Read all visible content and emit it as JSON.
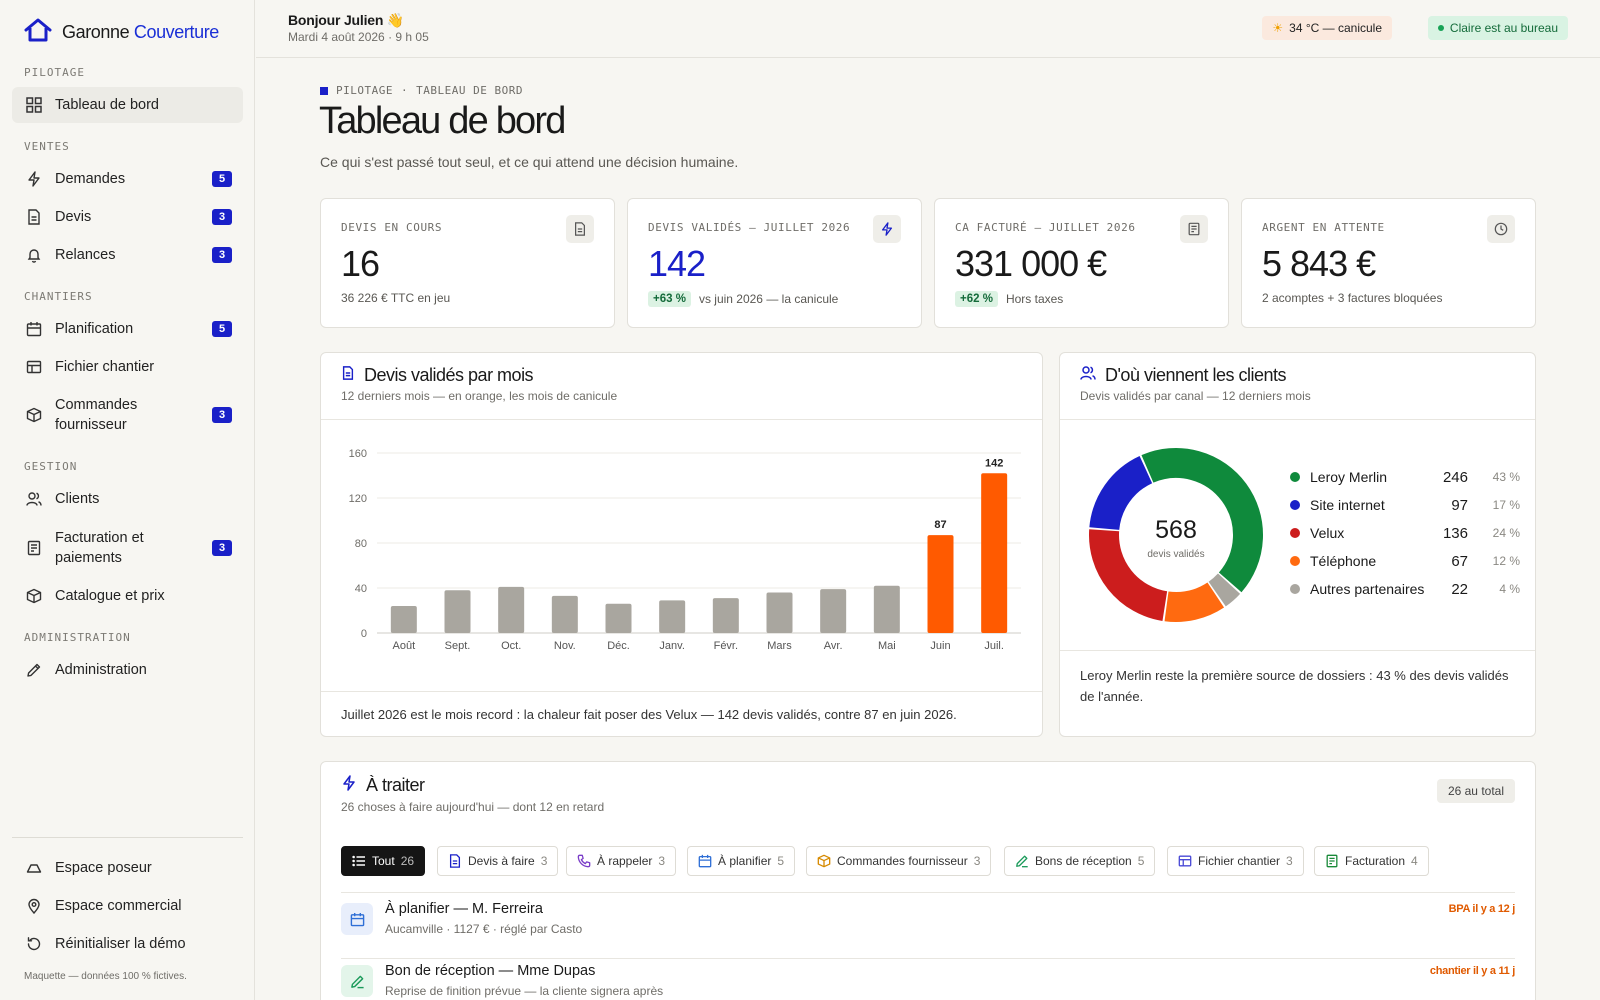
{
  "brand": {
    "name_part1": "Garonne",
    "name_part2": "Couverture"
  },
  "sidebar": {
    "sections": {
      "pilotage": "PILOTAGE",
      "ventes": "VENTES",
      "chantiers": "CHANTIERS",
      "gestion": "GESTION",
      "administration": "ADMINISTRATION"
    },
    "items": {
      "dashboard": {
        "label": "Tableau de bord"
      },
      "demandes": {
        "label": "Demandes",
        "badge": "5"
      },
      "devis": {
        "label": "Devis",
        "badge": "3"
      },
      "relances": {
        "label": "Relances",
        "badge": "3"
      },
      "planification": {
        "label": "Planification",
        "badge": "5"
      },
      "fichier": {
        "label": "Fichier chantier"
      },
      "commandes": {
        "label": "Commandes fournisseur",
        "badge": "3"
      },
      "clients": {
        "label": "Clients"
      },
      "facturation": {
        "label": "Facturation et paiements",
        "badge": "3"
      },
      "catalogue": {
        "label": "Catalogue et prix"
      },
      "admin": {
        "label": "Administration"
      },
      "poseur": {
        "label": "Espace poseur"
      },
      "commercial": {
        "label": "Espace commercial"
      },
      "reset": {
        "label": "Réinitialiser la démo"
      }
    },
    "footer_note": "Maquette — données 100 % fictives."
  },
  "topbar": {
    "greeting": "Bonjour Julien 👋",
    "date": "Mardi 4 août 2026 · 9 h 05",
    "weather_icon": "☀",
    "weather": "34 °C — canicule",
    "presence": "Claire est au bureau"
  },
  "page": {
    "crumb_section": "PILOTAGE",
    "crumb_sep": "·",
    "crumb_page": "TABLEAU DE BORD",
    "title": "Tableau de bord",
    "subtitle": "Ce qui s'est passé tout seul, et ce qui attend une décision humaine."
  },
  "kpis": [
    {
      "label": "DEVIS EN COURS",
      "value": "16",
      "sub": "36 226 € TTC en jeu",
      "icon": "document-icon"
    },
    {
      "label": "DEVIS VALIDÉS — JUILLET 2026",
      "value": "142",
      "delta": "+63 %",
      "sub": "vs juin 2026 — la canicule",
      "icon": "bolt-icon"
    },
    {
      "label": "CA FACTURÉ — JUILLET 2026",
      "value": "331 000 €",
      "delta": "+62 %",
      "sub": "Hors taxes",
      "icon": "receipt-icon"
    },
    {
      "label": "ARGENT EN ATTENTE",
      "value": "5 843 €",
      "sub": "2 acomptes + 3 factures bloquées",
      "icon": "clock-icon"
    }
  ],
  "monthly_panel": {
    "title": "Devis validés par mois",
    "subtitle": "12 derniers mois — en orange, les mois de canicule",
    "footer": "Juillet 2026 est le mois record : la chaleur fait poser des Velux — 142 devis validés, contre 87 en juin 2026."
  },
  "sources_panel": {
    "title": "D'où viennent les clients",
    "subtitle": "Devis validés par canal — 12 derniers mois",
    "total": "568",
    "total_label": "devis validés",
    "footer": "Leroy Merlin reste la première source de dossiers : 43 % des devis validés de l'année."
  },
  "chart_data": [
    {
      "type": "bar",
      "categories": [
        "Août",
        "Sept.",
        "Oct.",
        "Nov.",
        "Déc.",
        "Janv.",
        "Févr.",
        "Mars",
        "Avr.",
        "Mai",
        "Juin",
        "Juil."
      ],
      "values": [
        24,
        38,
        41,
        33,
        26,
        29,
        31,
        36,
        39,
        42,
        87,
        142
      ],
      "highlight": [
        false,
        false,
        false,
        false,
        false,
        false,
        false,
        false,
        false,
        false,
        true,
        true
      ],
      "data_labels": {
        "10": "87",
        "11": "142"
      },
      "yticks": [
        0,
        40,
        80,
        120,
        160
      ],
      "ylim": [
        0,
        160
      ],
      "colors": {
        "normal": "#a9a69f",
        "highlight": "#ff5a00"
      },
      "grid": true
    },
    {
      "type": "pie",
      "donut": true,
      "slices": [
        {
          "label": "Leroy Merlin",
          "value": 246,
          "percent": "43 %",
          "color": "#0f8a3c"
        },
        {
          "label": "Site internet",
          "value": 97,
          "percent": "17 %",
          "color": "#1a20c8"
        },
        {
          "label": "Velux",
          "value": 136,
          "percent": "24 %",
          "color": "#cc1d1d"
        },
        {
          "label": "Téléphone",
          "value": 67,
          "percent": "12 %",
          "color": "#ff6a10"
        },
        {
          "label": "Autres partenaires",
          "value": 22,
          "percent": "4 %",
          "color": "#a9a69f"
        }
      ],
      "draw_order": [
        0,
        4,
        3,
        2,
        1
      ],
      "legend": "right"
    }
  ],
  "todo": {
    "title": "À traiter",
    "subtitle": "26 choses à faire aujourd'hui — dont 12 en retard",
    "total_badge": "26 au total",
    "tabs": [
      {
        "label": "Tout",
        "count": "26",
        "icon": "list-icon"
      },
      {
        "label": "Devis à faire",
        "count": "3",
        "icon": "document-icon"
      },
      {
        "label": "À rappeler",
        "count": "3",
        "icon": "phone-icon"
      },
      {
        "label": "À planifier",
        "count": "5",
        "icon": "calendar-icon"
      },
      {
        "label": "Commandes fournisseur",
        "count": "3",
        "icon": "box-icon"
      },
      {
        "label": "Bons de réception",
        "count": "5",
        "icon": "pen-icon"
      },
      {
        "label": "Fichier chantier",
        "count": "3",
        "icon": "table-icon"
      },
      {
        "label": "Facturation",
        "count": "4",
        "icon": "receipt-icon"
      }
    ],
    "items": [
      {
        "title": "À planifier — M. Ferreira",
        "sub": "Aucamville · 1127 € · réglé par Casto",
        "tag": "BPA il y a 12 j",
        "icon": "calendar-icon"
      },
      {
        "title": "Bon de réception — Mme Dupas",
        "sub": "Reprise de finition prévue — la cliente signera après",
        "tag": "chantier il y a 11 j",
        "icon": "pen-icon"
      }
    ]
  }
}
